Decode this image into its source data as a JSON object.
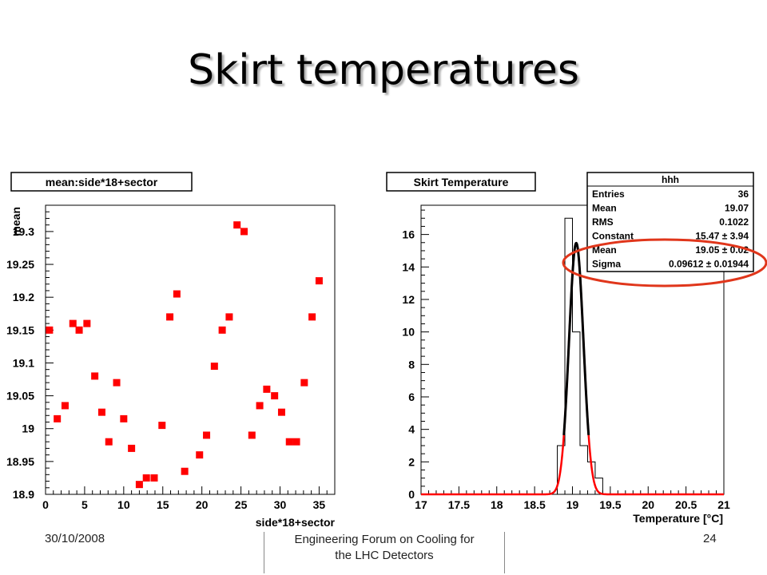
{
  "slide": {
    "title": "Skirt temperatures",
    "footer_date": "30/10/2008",
    "footer_center_line1": "Engineering Forum on Cooling for",
    "footer_center_line2": "the LHC Detectors",
    "footer_page": "24"
  },
  "chart_data": [
    {
      "type": "scatter",
      "title": "mean:side*18+sector",
      "xlabel": "side*18+sector",
      "ylabel": "mean",
      "xlim": [
        0,
        37
      ],
      "ylim": [
        18.9,
        19.34
      ],
      "x_ticks": [
        0,
        5,
        10,
        15,
        20,
        25,
        30,
        35
      ],
      "y_ticks": [
        18.9,
        18.95,
        19,
        19.05,
        19.1,
        19.15,
        19.2,
        19.25,
        19.3
      ],
      "y_tick_labels": [
        "18.9",
        "18.95",
        "19",
        "19.05",
        "19.1",
        "19.15",
        "19.2",
        "19.25",
        "19.3"
      ],
      "marker_color": "#ff0000",
      "points": [
        {
          "x": 0.5,
          "y": 19.15
        },
        {
          "x": 1.5,
          "y": 19.015
        },
        {
          "x": 2.5,
          "y": 19.035
        },
        {
          "x": 3.5,
          "y": 19.16
        },
        {
          "x": 4.3,
          "y": 19.15
        },
        {
          "x": 5.3,
          "y": 19.16
        },
        {
          "x": 6.3,
          "y": 19.08
        },
        {
          "x": 7.2,
          "y": 19.025
        },
        {
          "x": 8.1,
          "y": 18.98
        },
        {
          "x": 9.1,
          "y": 19.07
        },
        {
          "x": 10.0,
          "y": 19.015
        },
        {
          "x": 11.0,
          "y": 18.97
        },
        {
          "x": 12.0,
          "y": 18.915
        },
        {
          "x": 12.9,
          "y": 18.925
        },
        {
          "x": 13.9,
          "y": 18.925
        },
        {
          "x": 14.9,
          "y": 19.005
        },
        {
          "x": 15.9,
          "y": 19.17
        },
        {
          "x": 16.8,
          "y": 19.205
        },
        {
          "x": 17.8,
          "y": 18.935
        },
        {
          "x": 19.7,
          "y": 18.96
        },
        {
          "x": 20.6,
          "y": 18.99
        },
        {
          "x": 21.6,
          "y": 19.095
        },
        {
          "x": 22.6,
          "y": 19.15
        },
        {
          "x": 23.5,
          "y": 19.17
        },
        {
          "x": 24.5,
          "y": 19.31
        },
        {
          "x": 25.4,
          "y": 19.3
        },
        {
          "x": 26.4,
          "y": 18.99
        },
        {
          "x": 27.4,
          "y": 19.035
        },
        {
          "x": 28.3,
          "y": 19.06
        },
        {
          "x": 29.3,
          "y": 19.05
        },
        {
          "x": 30.2,
          "y": 19.025
        },
        {
          "x": 31.2,
          "y": 18.98
        },
        {
          "x": 32.1,
          "y": 18.98
        },
        {
          "x": 33.1,
          "y": 19.07
        },
        {
          "x": 34.1,
          "y": 19.17
        },
        {
          "x": 35.0,
          "y": 19.225
        }
      ]
    },
    {
      "type": "histogram",
      "title": "Skirt Temperature",
      "xlabel": "Temperature [°C]",
      "ylabel": "",
      "xlim": [
        17,
        21
      ],
      "ylim": [
        0,
        17.8
      ],
      "x_ticks": [
        17,
        17.5,
        18,
        18.5,
        19,
        19.5,
        20,
        20.5,
        21
      ],
      "x_tick_labels": [
        "17",
        "17.5",
        "18",
        "18.5",
        "19",
        "19.5",
        "20",
        "20.5",
        "21"
      ],
      "y_ticks": [
        0,
        2,
        4,
        6,
        8,
        10,
        12,
        14,
        16
      ],
      "y_tick_labels": [
        "0",
        "2",
        "4",
        "6",
        "8",
        "10",
        "12",
        "14",
        "16"
      ],
      "bin_width": 0.1,
      "bins": [
        {
          "x_low": 18.8,
          "count": 3
        },
        {
          "x_low": 18.9,
          "count": 17
        },
        {
          "x_low": 19.0,
          "count": 10
        },
        {
          "x_low": 19.1,
          "count": 3
        },
        {
          "x_low": 19.2,
          "count": 2
        },
        {
          "x_low": 19.3,
          "count": 1
        }
      ],
      "fit": {
        "function": "gaus",
        "constant": 15.47,
        "mean": 19.05,
        "sigma": 0.09612,
        "line_color_outer": "#ff0000",
        "line_color_core": "#000000"
      },
      "stats_box": {
        "name": "hhh",
        "rows": [
          {
            "label": "Entries",
            "value": "36"
          },
          {
            "label": "Mean",
            "value": "19.07"
          },
          {
            "label": "RMS",
            "value": "0.1022"
          },
          {
            "label": "Constant",
            "value": "15.47 ± 3.94"
          },
          {
            "label": "Mean",
            "value": "19.05 ± 0.02"
          },
          {
            "label": "Sigma",
            "value": "0.09612 ± 0.01944"
          }
        ]
      },
      "annotation": {
        "shape": "ellipse",
        "color": "#e0361b",
        "highlights": "fit parameters"
      }
    }
  ]
}
